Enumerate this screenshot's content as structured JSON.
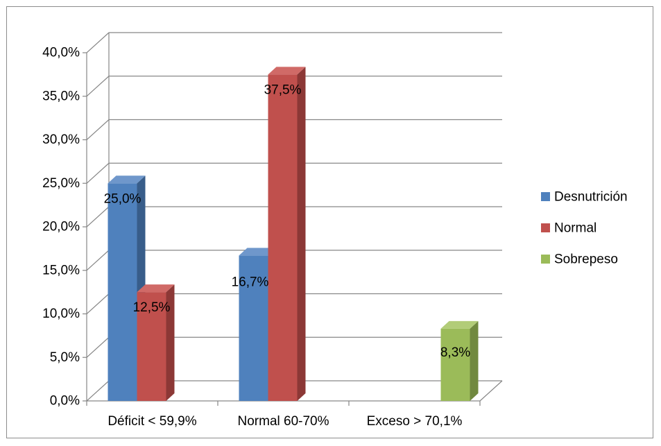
{
  "chart_data": {
    "type": "bar",
    "categories": [
      "Déficit < 59,9%",
      "Normal 60-70%",
      "Exceso > 70,1%"
    ],
    "series": [
      {
        "name": "Desnutrición",
        "values": [
          25.0,
          16.7,
          null
        ],
        "labels": [
          "25,0%",
          "16,7%",
          ""
        ],
        "color": "#4F81BD",
        "side_color": "#385D8A",
        "top_color": "#6F97CB"
      },
      {
        "name": "Normal",
        "values": [
          12.5,
          37.5,
          null
        ],
        "labels": [
          "12,5%",
          "37,5%",
          ""
        ],
        "color": "#C0504D",
        "side_color": "#8C3836",
        "top_color": "#D06A67"
      },
      {
        "name": "Sobrepeso",
        "values": [
          null,
          null,
          8.3
        ],
        "labels": [
          "",
          "",
          "8,3%"
        ],
        "color": "#9BBB59",
        "side_color": "#71893F",
        "top_color": "#B2CC78"
      }
    ],
    "y_ticks": [
      "0,0%",
      "5,0%",
      "10,0%",
      "15,0%",
      "20,0%",
      "25,0%",
      "30,0%",
      "35,0%",
      "40,0%"
    ],
    "ylim": [
      0,
      40
    ],
    "title": "",
    "xlabel": "",
    "ylabel": "",
    "grid": true,
    "legend_position": "right",
    "style": "3d-clustered-column"
  }
}
